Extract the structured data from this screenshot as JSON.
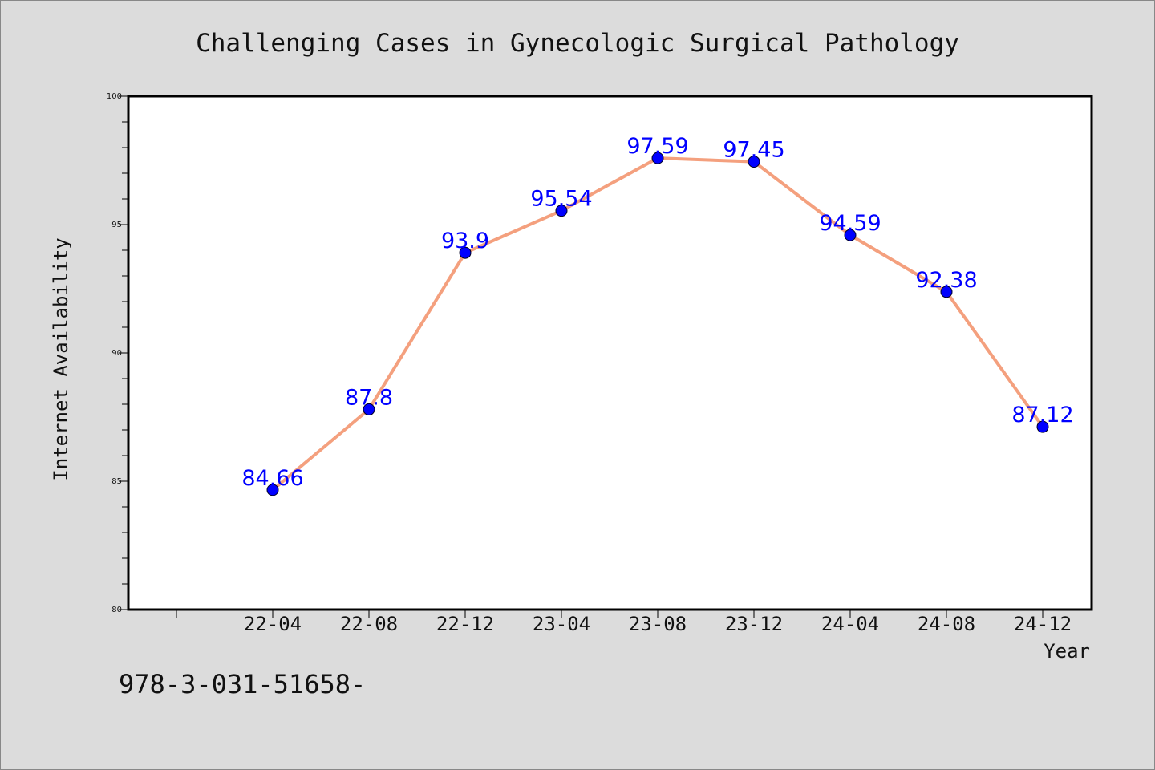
{
  "chart_data": {
    "type": "line",
    "title": "Challenging Cases in Gynecologic Surgical Pathology",
    "xlabel": "Year",
    "ylabel": "Internet Availability",
    "categories": [
      "22-04",
      "22-08",
      "22-12",
      "23-04",
      "23-08",
      "23-12",
      "24-04",
      "24-08",
      "24-12"
    ],
    "values": [
      84.66,
      87.8,
      93.9,
      95.54,
      97.59,
      97.45,
      94.59,
      92.38,
      87.12
    ],
    "data_labels": [
      "84.66",
      "87.8",
      "93.9",
      "95.54",
      "97.59",
      "97.45",
      "94.59",
      "92.38",
      "87.12"
    ],
    "ylim": [
      80,
      100
    ],
    "yticks": [
      "80",
      "85",
      "90",
      "95",
      "100"
    ],
    "line_color": "#f4a07e",
    "marker_color": "#0000ff",
    "label_color": "#0000ff",
    "grid": false,
    "legend": "none"
  },
  "footer_text": "978-3-031-51658-"
}
